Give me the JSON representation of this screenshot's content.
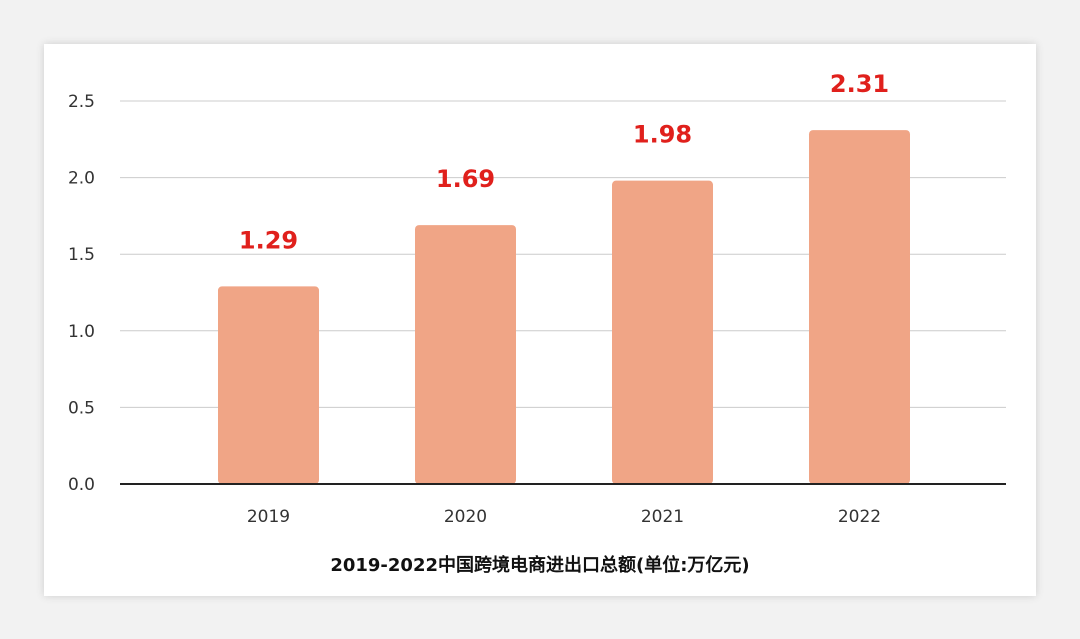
{
  "chart_data": {
    "type": "bar",
    "title": "2019-2022中国跨境电商进出口总额(单位:万亿元)",
    "xlabel": "",
    "ylabel": "",
    "categories": [
      "2019",
      "2020",
      "2021",
      "2022"
    ],
    "values": [
      1.29,
      1.69,
      1.98,
      2.31
    ],
    "data_labels": [
      "1.29",
      "1.69",
      "1.98",
      "2.31"
    ],
    "ylim": [
      0,
      2.5
    ],
    "yticks": [
      "0.0",
      "0.5",
      "1.0",
      "1.5",
      "2.0",
      "2.5"
    ],
    "ytick_values": [
      0,
      0.5,
      1.0,
      1.5,
      2.0,
      2.5
    ],
    "grid": true,
    "legend": "none",
    "colors": {
      "bar": "#f0a586",
      "data_label": "#e0201c",
      "grid": "#cccccc",
      "axis": "#222222"
    }
  }
}
